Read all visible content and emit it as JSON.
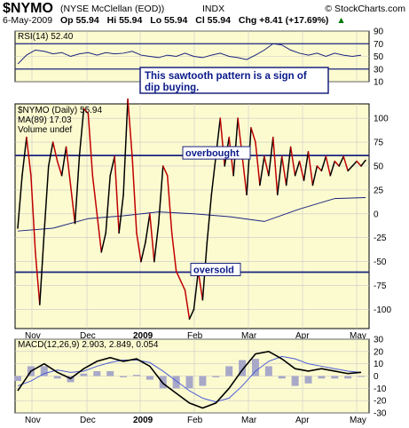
{
  "header": {
    "symbol": "$NYMO",
    "description": "(NYSE McClellan (EOD))",
    "exchange": "INDX",
    "brand": "© StockCharts.com",
    "date": "6-May-2009",
    "open": "Op 55.94",
    "high": "Hi 55.94",
    "low": "Lo 55.94",
    "close": "Cl 55.94",
    "change": "Chg +8.41 (+17.69%)",
    "change_arrow": "▲"
  },
  "annotations": {
    "rsi_note_line1": "This sawtooth pattern is a sign of",
    "rsi_note_line2": "dip buying.",
    "overbought": "overbought",
    "oversold": "oversold"
  },
  "chart_data": [
    {
      "type": "line",
      "panel": "RSI",
      "legend": "RSI(14) 52.40",
      "ylim": [
        10,
        90
      ],
      "yticks": [
        10,
        30,
        50,
        70,
        90
      ],
      "reference_lines": [
        30,
        70
      ],
      "series": [
        {
          "name": "RSI(14)",
          "x": [
            0,
            10,
            20,
            30,
            40,
            50,
            60,
            70,
            80,
            90,
            100,
            110,
            120,
            130,
            140,
            150,
            160,
            170,
            180,
            190,
            200,
            210,
            220,
            230,
            240,
            250,
            260,
            270,
            280,
            290,
            300,
            310,
            320,
            330,
            340,
            350,
            360,
            370,
            380,
            390
          ],
          "values": [
            38,
            52,
            60,
            58,
            54,
            56,
            50,
            54,
            56,
            52,
            56,
            54,
            55,
            58,
            52,
            50,
            48,
            52,
            50,
            55,
            50,
            48,
            52,
            55,
            50,
            48,
            45,
            52,
            60,
            70,
            68,
            60,
            55,
            52,
            55,
            50,
            55,
            52,
            50,
            52
          ]
        }
      ]
    },
    {
      "type": "line",
      "panel": "NYMO",
      "legend": [
        "$NYMO (Daily) 55.94",
        "MA(89) 17.03",
        "Volume undef"
      ],
      "ylim": [
        -120,
        115
      ],
      "yticks": [
        100,
        75,
        50,
        25,
        0,
        -25,
        -50,
        -75,
        -100
      ],
      "reference_lines": [
        {
          "value": 61,
          "label": "overbought"
        },
        {
          "value": -61,
          "label": "oversold"
        }
      ],
      "x_categories": [
        "Nov",
        "Dec",
        "2009",
        "Feb",
        "Mar",
        "Apr",
        "May"
      ],
      "series": [
        {
          "name": "$NYMO",
          "x": [
            0,
            5,
            10,
            15,
            20,
            25,
            30,
            35,
            40,
            45,
            50,
            55,
            60,
            65,
            70,
            75,
            80,
            85,
            90,
            95,
            100,
            105,
            110,
            115,
            120,
            125,
            130,
            135,
            140,
            145,
            150,
            155,
            160,
            165,
            170,
            175,
            180,
            185,
            190,
            195,
            200,
            205,
            210,
            215,
            220,
            225,
            230,
            235,
            240,
            245,
            250,
            255,
            260,
            265,
            270,
            275,
            280,
            285,
            290,
            295,
            300,
            305,
            310,
            315,
            320,
            325,
            330,
            335,
            340,
            345,
            350,
            355,
            360,
            365,
            370,
            375,
            380,
            385,
            390,
            395
          ],
          "values": [
            -15,
            40,
            80,
            40,
            -40,
            -95,
            -20,
            50,
            75,
            55,
            40,
            70,
            30,
            -10,
            60,
            110,
            105,
            40,
            0,
            -40,
            -20,
            40,
            60,
            -20,
            20,
            120,
            60,
            -20,
            -50,
            -30,
            0,
            -50,
            -10,
            50,
            40,
            -20,
            -60,
            -70,
            -80,
            -110,
            -100,
            -60,
            -90,
            -30,
            20,
            60,
            100,
            50,
            80,
            40,
            100,
            60,
            20,
            90,
            75,
            30,
            60,
            40,
            80,
            20,
            60,
            30,
            70,
            40,
            55,
            35,
            65,
            30,
            50,
            45,
            60,
            40,
            55,
            50,
            60,
            45,
            50,
            55,
            50,
            56
          ]
        },
        {
          "name": "MA(89)",
          "x": [
            0,
            40,
            80,
            120,
            160,
            200,
            240,
            280,
            320,
            360,
            395
          ],
          "values": [
            -18,
            -15,
            -5,
            -2,
            2,
            0,
            -3,
            -8,
            5,
            16,
            17
          ]
        }
      ]
    },
    {
      "type": "line",
      "panel": "MACD",
      "legend": "MACD(12,26,9) 2.903, 2.849, 0.054",
      "ylim": [
        -30,
        30
      ],
      "yticks": [
        30,
        20,
        10,
        0,
        -10,
        -20,
        -30
      ],
      "x_categories": [
        "Nov",
        "Dec",
        "2009",
        "Feb",
        "Mar",
        "Apr",
        "May"
      ],
      "series": [
        {
          "name": "MACD",
          "x": [
            0,
            15,
            30,
            45,
            60,
            75,
            90,
            105,
            120,
            135,
            150,
            165,
            180,
            195,
            210,
            225,
            240,
            255,
            270,
            285,
            300,
            315,
            330,
            345,
            360,
            375,
            390
          ],
          "values": [
            -12,
            4,
            10,
            3,
            -2,
            6,
            12,
            15,
            12,
            14,
            8,
            -6,
            -14,
            -22,
            -26,
            -22,
            -10,
            5,
            18,
            20,
            14,
            6,
            4,
            6,
            4,
            2,
            3
          ]
        },
        {
          "name": "Signal",
          "x": [
            0,
            15,
            30,
            45,
            60,
            75,
            90,
            105,
            120,
            135,
            150,
            165,
            180,
            195,
            210,
            225,
            240,
            255,
            270,
            285,
            300,
            315,
            330,
            345,
            360,
            375,
            390
          ],
          "values": [
            -8,
            -4,
            2,
            5,
            3,
            4,
            8,
            11,
            13,
            13,
            11,
            4,
            -4,
            -12,
            -18,
            -21,
            -18,
            -8,
            4,
            12,
            16,
            14,
            10,
            8,
            6,
            4,
            3
          ]
        },
        {
          "name": "Histogram",
          "x": [
            0,
            15,
            30,
            45,
            60,
            75,
            90,
            105,
            120,
            135,
            150,
            165,
            180,
            195,
            210,
            225,
            240,
            255,
            270,
            285,
            300,
            315,
            330,
            345,
            360,
            375,
            390
          ],
          "values": [
            -4,
            8,
            8,
            -2,
            -5,
            2,
            4,
            4,
            -1,
            1,
            -3,
            -10,
            -10,
            -10,
            -8,
            -1,
            8,
            13,
            14,
            8,
            -2,
            -8,
            -6,
            -2,
            -2,
            -2,
            0
          ]
        }
      ]
    }
  ],
  "colors": {
    "panel_bg": "#fcfbd0",
    "grid": "#c8c8c8",
    "ref_line": "#1a237e",
    "nymo_up": "#000000",
    "nymo_down": "#c00000",
    "ma": "#1a237e",
    "rsi": "#1a237e",
    "macd": "#000000",
    "signal": "#4a5bd6",
    "histogram": "#a8a8c8",
    "note_text": "#0a1a8a",
    "note_bg": "#ffffff"
  }
}
